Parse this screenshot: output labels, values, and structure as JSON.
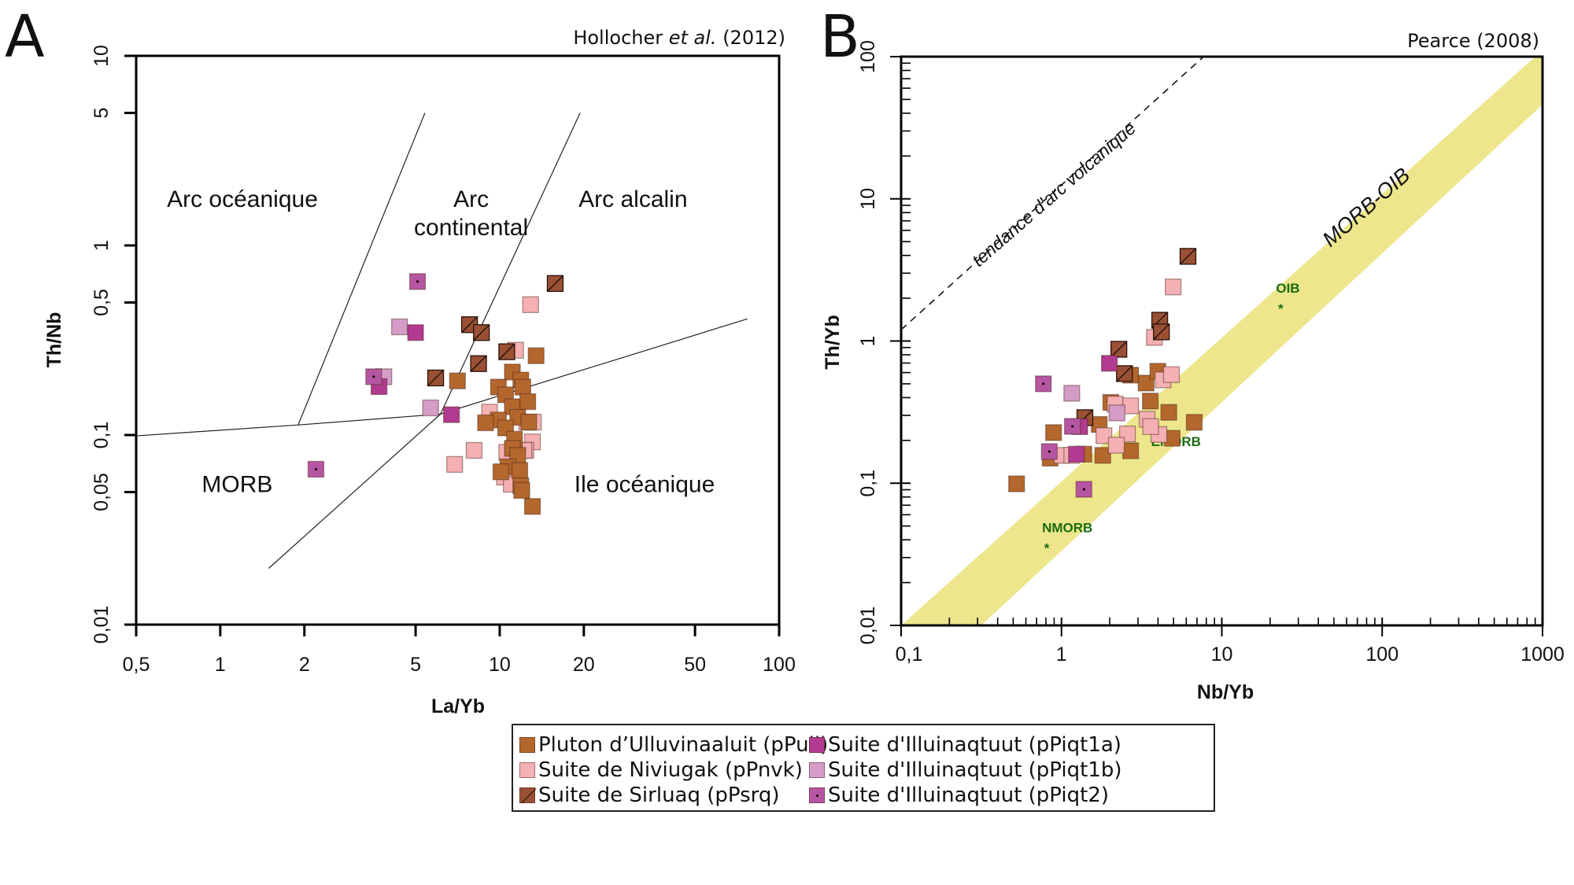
{
  "figure": {
    "panel_a_letter": "A",
    "panel_b_letter": "B"
  },
  "legend": {
    "items": [
      {
        "key": "pPull",
        "label": "Pluton d’Ulluvinaaluit (pPull)",
        "color": "#b4672c",
        "marker": "plain"
      },
      {
        "key": "pPnvk",
        "label": "Suite de Niviugak (pPnvk)",
        "color": "#f4b0b2",
        "marker": "plain"
      },
      {
        "key": "pPsrq",
        "label": "Suite de Sirluaq (pPsrq)",
        "color": "#9a5034",
        "marker": "diagonal"
      },
      {
        "key": "pPiqt1a",
        "label": "Suite d'Illuinaqtuut (pPiqt1a)",
        "color": "#b23a90",
        "marker": "plain"
      },
      {
        "key": "pPiqt1b",
        "label": "Suite d'Illuinaqtuut (pPiqt1b)",
        "color": "#d59cc8",
        "marker": "plain"
      },
      {
        "key": "pPiqt2",
        "label": "Suite d'Illuinaqtuut (pPiqt2)",
        "color": "#b656a2",
        "marker": "dot"
      }
    ]
  },
  "chart_data": [
    {
      "type": "scatter",
      "panel": "A",
      "title": "Hollocher et al. (2012)",
      "title_parts": {
        "before": "Hollocher ",
        "italic": "et al.",
        "after": " (2012)"
      },
      "xlabel": "La/Yb",
      "ylabel": "Th/Nb",
      "xscale": "log",
      "yscale": "log",
      "xlim": [
        0.5,
        100
      ],
      "ylim": [
        0.01,
        10
      ],
      "xticks": [
        0.5,
        1,
        2,
        5,
        10,
        20,
        50,
        100
      ],
      "xtick_labels": [
        "0,5",
        "1",
        "2",
        "5",
        "10",
        "20",
        "50",
        "100"
      ],
      "yticks": [
        0.01,
        0.05,
        0.1,
        0.5,
        1,
        5,
        10
      ],
      "ytick_labels": [
        "0,01",
        "0,05",
        "0,1",
        "0,5",
        "1",
        "5",
        "10"
      ],
      "grid": false,
      "boundaries": [
        {
          "name": "boundary-oceanic-continental",
          "points": [
            [
              1.9,
              0.113
            ],
            [
              5.4,
              5.0
            ]
          ]
        },
        {
          "name": "boundary-continental-alkaline",
          "points": [
            [
              1.49,
              0.0198
            ],
            [
              6.14,
              0.129
            ],
            [
              19.4,
              5.0
            ]
          ]
        },
        {
          "name": "boundary-arc-morb",
          "points": [
            [
              0.5,
              0.099
            ],
            [
              1.9,
              0.113
            ],
            [
              6.14,
              0.129
            ],
            [
              77,
              0.41
            ]
          ]
        }
      ],
      "regions": [
        {
          "label": "Arc océanique",
          "at": [
            1.2,
            1.6
          ]
        },
        {
          "label": "Arc",
          "at": [
            7.9,
            1.6
          ]
        },
        {
          "label": "continental",
          "at": [
            7.9,
            1.13
          ]
        },
        {
          "label": "Arc alcalin",
          "at": [
            30,
            1.6
          ]
        },
        {
          "label": "MORB",
          "at": [
            1.15,
            0.05
          ]
        },
        {
          "label": "Ile océanique",
          "at": [
            33,
            0.05
          ]
        }
      ],
      "series": [
        {
          "name": "pPnvk",
          "points": [
            [
              12.9,
              0.487
            ],
            [
              11.4,
              0.28
            ],
            [
              6.9,
              0.07
            ],
            [
              8.1,
              0.083
            ],
            [
              9.2,
              0.132
            ],
            [
              12.5,
              0.117
            ],
            [
              13.2,
              0.117
            ],
            [
              10.6,
              0.081
            ],
            [
              13.1,
              0.092
            ],
            [
              12.4,
              0.083
            ],
            [
              10.4,
              0.06
            ],
            [
              12.2,
              0.083
            ],
            [
              11.0,
              0.055
            ]
          ]
        },
        {
          "name": "pPull",
          "points": [
            [
              13.5,
              0.262
            ],
            [
              7.06,
              0.193
            ],
            [
              11.1,
              0.215
            ],
            [
              11.9,
              0.195
            ],
            [
              9.9,
              0.179
            ],
            [
              12.1,
              0.179
            ],
            [
              10.5,
              0.163
            ],
            [
              11.1,
              0.141
            ],
            [
              12.6,
              0.15
            ],
            [
              9.9,
              0.12
            ],
            [
              11.6,
              0.124
            ],
            [
              10.5,
              0.109
            ],
            [
              12.7,
              0.117
            ],
            [
              11.3,
              0.095
            ],
            [
              11.1,
              0.085
            ],
            [
              11.6,
              0.078
            ],
            [
              10.7,
              0.068
            ],
            [
              11.8,
              0.065
            ],
            [
              10.1,
              0.064
            ],
            [
              11.9,
              0.054
            ],
            [
              12.0,
              0.051
            ],
            [
              13.1,
              0.042
            ],
            [
              8.9,
              0.116
            ]
          ]
        },
        {
          "name": "pPsrq",
          "points": [
            [
              15.8,
              0.63
            ],
            [
              7.8,
              0.382
            ],
            [
              8.6,
              0.347
            ],
            [
              8.4,
              0.238
            ],
            [
              5.9,
              0.2
            ],
            [
              10.6,
              0.275
            ]
          ]
        },
        {
          "name": "pPiqt1b",
          "points": [
            [
              4.38,
              0.372
            ],
            [
              3.85,
              0.203
            ],
            [
              5.66,
              0.139
            ]
          ]
        },
        {
          "name": "pPiqt1a",
          "points": [
            [
              5.0,
              0.347
            ],
            [
              3.7,
              0.18
            ],
            [
              6.72,
              0.128
            ]
          ]
        },
        {
          "name": "pPiqt2",
          "points": [
            [
              5.08,
              0.645
            ],
            [
              3.54,
              0.203
            ],
            [
              2.2,
              0.066
            ]
          ]
        }
      ]
    },
    {
      "type": "scatter",
      "panel": "B",
      "title": "Pearce (2008)",
      "xlabel": "Nb/Yb",
      "ylabel": "Th/Yb",
      "xscale": "log",
      "yscale": "log",
      "xlim": [
        0.1,
        1000
      ],
      "ylim": [
        0.01,
        100
      ],
      "xticks": [
        0.1,
        1,
        10,
        100,
        1000
      ],
      "xtick_labels": [
        "0,1",
        "1",
        "10",
        "100",
        "1000"
      ],
      "yticks": [
        0.01,
        0.1,
        1,
        10,
        100
      ],
      "ytick_labels": [
        "0,01",
        "0,1",
        "1",
        "10",
        "100"
      ],
      "minor_ticks": true,
      "grid": false,
      "band": {
        "label": "MORB-OIB",
        "color": "#ede68c",
        "upper": [
          [
            0.1,
            0.01
          ],
          [
            900,
            100
          ]
        ],
        "lower": [
          [
            0.316,
            0.01
          ],
          [
            1000,
            46
          ]
        ],
        "label_at": [
          85,
          8
        ]
      },
      "trend_line": {
        "label": "tendance d'arc volcanique",
        "style": "dashed",
        "points": [
          [
            0.1,
            1.2
          ],
          [
            7.7,
            100
          ]
        ],
        "label_at": [
          0.95,
          10
        ]
      },
      "reference_points": [
        {
          "label": "NMORB",
          "x": 0.81,
          "y": 0.037
        },
        {
          "label": "EMORB",
          "x": 3.79,
          "y": 0.245
        },
        {
          "label": "OIB",
          "x": 23.3,
          "y": 1.79
        }
      ],
      "series": [
        {
          "name": "pPull",
          "points": [
            [
              2.7,
              0.575
            ],
            [
              3.37,
              0.506
            ],
            [
              3.99,
              0.613
            ],
            [
              3.58,
              0.378
            ],
            [
              2.03,
              0.37
            ],
            [
              4.67,
              0.315
            ],
            [
              6.73,
              0.268
            ],
            [
              0.893,
              0.227
            ],
            [
              1.72,
              0.259
            ],
            [
              4.9,
              0.207
            ],
            [
              2.7,
              0.169
            ],
            [
              1.81,
              0.157
            ],
            [
              1.38,
              0.16
            ],
            [
              0.525,
              0.099
            ],
            [
              0.85,
              0.15
            ]
          ]
        },
        {
          "name": "pPnvk",
          "points": [
            [
              4.97,
              2.4
            ],
            [
              3.8,
              1.06
            ],
            [
              4.3,
              0.533
            ],
            [
              4.85,
              0.58
            ],
            [
              2.16,
              0.36
            ],
            [
              2.7,
              0.35
            ],
            [
              3.42,
              0.282
            ],
            [
              1.84,
              0.216
            ],
            [
              2.58,
              0.222
            ],
            [
              4.05,
              0.22
            ],
            [
              2.2,
              0.185
            ],
            [
              1.01,
              0.157
            ],
            [
              1.16,
              0.157
            ],
            [
              3.6,
              0.25
            ]
          ]
        },
        {
          "name": "pPsrq",
          "points": [
            [
              6.15,
              3.94
            ],
            [
              4.1,
              1.4
            ],
            [
              4.2,
              1.16
            ],
            [
              2.28,
              0.875
            ],
            [
              2.47,
              0.59
            ],
            [
              1.4,
              0.289
            ]
          ]
        },
        {
          "name": "pPiqt1b",
          "points": [
            [
              1.16,
              0.429
            ],
            [
              2.22,
              0.312
            ]
          ]
        },
        {
          "name": "pPiqt1a",
          "points": [
            [
              1.99,
              0.697
            ],
            [
              1.24,
              0.16
            ],
            [
              1.3,
              0.25
            ]
          ]
        },
        {
          "name": "pPiqt2",
          "points": [
            [
              0.771,
              0.5
            ],
            [
              1.17,
              0.251
            ],
            [
              0.84,
              0.167
            ],
            [
              1.38,
              0.0906
            ]
          ]
        }
      ]
    }
  ]
}
